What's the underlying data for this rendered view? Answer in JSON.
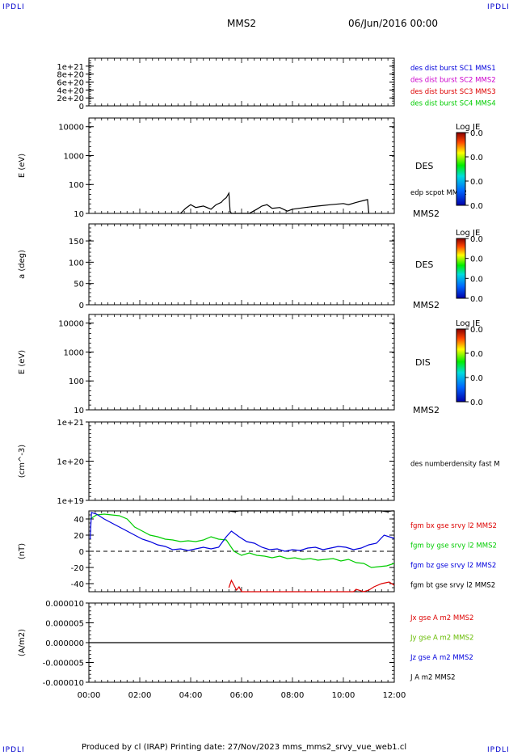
{
  "corner_tag": "IPDLI",
  "header": {
    "spacecraft": "MMS2",
    "date": "06/Jun/2016 00:00"
  },
  "footer": {
    "text": "Produced by cl (IRAP)   Printing date: 27/Nov/2023   mms_mms2_srvy_vue_web1.cl"
  },
  "x_ticks": [
    "00:00",
    "02:00",
    "04:00",
    "06:00",
    "08:00",
    "10:00",
    "12:00"
  ],
  "panels": [
    {
      "id": "dist",
      "ylabel": "",
      "ticks": [
        "1e+21",
        "8e+20",
        "6e+20",
        "4e+20",
        "2e+20",
        "0"
      ],
      "right_labels": [
        {
          "text": "des dist burst SC1 MMS1",
          "color": "#0000dd"
        },
        {
          "text": "des dist burst SC2 MMS2",
          "color": "#cc00cc"
        },
        {
          "text": "des dist burst SC3 MMS3",
          "color": "#dd0000"
        },
        {
          "text": "des dist burst SC4 MMS4",
          "color": "#00cc00"
        }
      ]
    },
    {
      "id": "des-energy",
      "ylabel": "E (eV)",
      "ticks": [
        "10000",
        "1000",
        "100",
        "10"
      ],
      "species": "DES",
      "mms": "MMS2",
      "overlay_label": "edp scpot MMS2",
      "colorbar": {
        "title": "Log JE",
        "labels": [
          "0.0",
          "0.0",
          "0.0",
          "0.0"
        ]
      }
    },
    {
      "id": "des-pitch",
      "ylabel": "a (deg)",
      "ticks": [
        "150",
        "100",
        "50",
        "0"
      ],
      "species": "DES",
      "mms": "MMS2",
      "colorbar": {
        "title": "Log JE",
        "labels": [
          "0.0",
          "0.0",
          "0.0",
          "0.0"
        ]
      }
    },
    {
      "id": "dis-energy",
      "ylabel": "E (eV)",
      "ticks": [
        "10000",
        "1000",
        "100",
        "10"
      ],
      "species": "DIS",
      "mms": "MMS2",
      "colorbar": {
        "title": "Log JE",
        "labels": [
          "0.0",
          "0.0",
          "0.0",
          "0.0"
        ]
      }
    },
    {
      "id": "density",
      "ylabel": "(cm^-3)",
      "ticks": [
        "1e+21",
        "1e+20",
        "1e+19"
      ],
      "right_labels": [
        {
          "text": "des numberdensity fast M",
          "color": "#000000"
        }
      ]
    },
    {
      "id": "fgm",
      "ylabel": "(nT)",
      "ticks": [
        "40",
        "20",
        "0",
        "-20",
        "-40"
      ],
      "right_labels": [
        {
          "text": "fgm bx gse srvy l2 MMS2",
          "color": "#dd0000"
        },
        {
          "text": "fgm by gse srvy l2 MMS2",
          "color": "#00cc00"
        },
        {
          "text": "fgm bz gse srvy l2 MMS2",
          "color": "#0000dd"
        },
        {
          "text": "fgm bt gse srvy l2 MMS2",
          "color": "#000000"
        }
      ]
    },
    {
      "id": "current",
      "ylabel": "(A/m2)",
      "ticks": [
        "0.000010",
        "0.000005",
        "0.000000",
        "-0.000005",
        "-0.000010"
      ],
      "right_labels": [
        {
          "text": "Jx gse A m2 MMS2",
          "color": "#dd0000"
        },
        {
          "text": "Jy gse A m2 MMS2",
          "color": "#66bb00"
        },
        {
          "text": "Jz gse A m2 MMS2",
          "color": "#0000dd"
        },
        {
          "text": "J A m2 MMS2",
          "color": "#000000"
        }
      ]
    }
  ],
  "chart_data": {
    "type": "line",
    "x_unit": "hours since 06/Jun/2016 00:00",
    "xlim": [
      0,
      12
    ],
    "series": [
      {
        "name": "edp scpot MMS2",
        "panel": "des-energy",
        "color": "#000000",
        "x": [
          3.6,
          3.8,
          4.0,
          4.2,
          4.5,
          4.8,
          5.0,
          5.2,
          5.3,
          5.4,
          5.5,
          5.55,
          5.6,
          5.8,
          6.0,
          6.3,
          6.6,
          6.8,
          7.0,
          7.2,
          7.5,
          7.8,
          8.0,
          8.5,
          9.0,
          9.5,
          10.0,
          10.2,
          10.5,
          10.8,
          10.95,
          11.0
        ],
        "y": [
          10,
          15,
          20,
          16,
          18,
          14,
          20,
          24,
          30,
          35,
          50,
          12,
          10,
          10,
          10,
          10,
          14,
          18,
          20,
          15,
          16,
          12,
          14,
          16,
          18,
          20,
          22,
          20,
          24,
          28,
          30,
          10
        ]
      },
      {
        "name": "fgm bx gse srvy l2 MMS2",
        "panel": "fgm",
        "color": "#dd0000",
        "x": [
          5.5,
          5.6,
          5.7,
          5.8,
          5.9,
          6.0,
          10.4,
          10.5,
          10.8,
          11.0,
          11.2,
          11.5,
          11.8,
          12.0
        ],
        "y": [
          -45,
          -36,
          -42,
          -48,
          -44,
          -50,
          -50,
          -47,
          -50,
          -48,
          -44,
          -40,
          -38,
          -42
        ]
      },
      {
        "name": "fgm by gse srvy l2 MMS2",
        "panel": "fgm",
        "color": "#00cc00",
        "x": [
          0.05,
          0.3,
          0.6,
          0.9,
          1.2,
          1.5,
          1.8,
          2.1,
          2.4,
          2.7,
          3.0,
          3.3,
          3.6,
          3.9,
          4.2,
          4.5,
          4.8,
          5.1,
          5.4,
          5.7,
          6.0,
          6.3,
          6.6,
          6.9,
          7.2,
          7.5,
          7.8,
          8.1,
          8.4,
          8.7,
          9.0,
          9.3,
          9.6,
          9.9,
          10.2,
          10.5,
          10.8,
          11.1,
          11.4,
          11.7,
          12.0
        ],
        "y": [
          40,
          45,
          46,
          45,
          44,
          40,
          30,
          25,
          20,
          18,
          15,
          14,
          12,
          13,
          12,
          14,
          18,
          15,
          14,
          0,
          -5,
          -2,
          -5,
          -6,
          -8,
          -6,
          -9,
          -8,
          -10,
          -9,
          -11,
          -10,
          -9,
          -12,
          -10,
          -14,
          -15,
          -20,
          -19,
          -18,
          -15
        ]
      },
      {
        "name": "fgm bz gse srvy l2 MMS2",
        "panel": "fgm",
        "color": "#0000dd",
        "x": [
          0.05,
          0.1,
          0.3,
          0.6,
          0.9,
          1.2,
          1.5,
          1.8,
          2.1,
          2.4,
          2.7,
          3.0,
          3.3,
          3.6,
          3.9,
          4.2,
          4.5,
          4.8,
          5.1,
          5.4,
          5.6,
          5.9,
          6.2,
          6.5,
          6.8,
          7.1,
          7.4,
          7.7,
          8.0,
          8.3,
          8.6,
          8.9,
          9.2,
          9.5,
          9.8,
          10.1,
          10.4,
          10.7,
          11.0,
          11.3,
          11.6,
          12.0
        ],
        "y": [
          15,
          48,
          46,
          40,
          35,
          30,
          25,
          20,
          15,
          12,
          8,
          6,
          2,
          3,
          1,
          3,
          5,
          3,
          5,
          18,
          25,
          18,
          12,
          10,
          5,
          2,
          3,
          0,
          2,
          1,
          4,
          5,
          2,
          4,
          6,
          5,
          2,
          4,
          8,
          10,
          20,
          16
        ]
      },
      {
        "name": "fgm bt gse srvy l2 MMS2",
        "panel": "fgm",
        "color": "#000000",
        "x": [
          5.5,
          5.7,
          5.9,
          6.0,
          11.5,
          11.7,
          11.9,
          12.0
        ],
        "y": [
          50,
          49,
          50,
          50,
          50,
          49,
          50,
          50
        ]
      },
      {
        "name": "J A m2 MMS2",
        "panel": "current",
        "color": "#000000",
        "x": [
          0,
          2,
          4,
          6,
          8,
          10,
          12
        ],
        "y": [
          0,
          0,
          0,
          0,
          0,
          0,
          0
        ]
      }
    ]
  }
}
